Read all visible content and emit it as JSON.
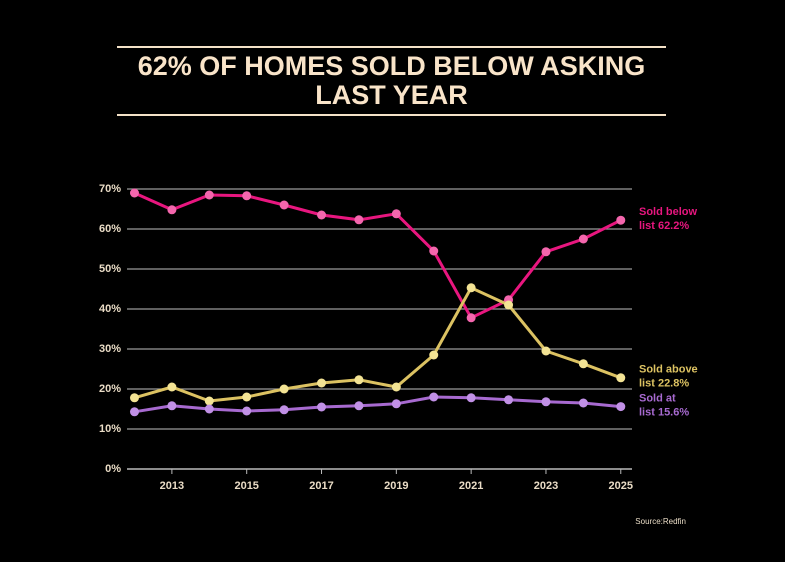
{
  "chart_data": {
    "type": "line",
    "title": "62% OF HOMES SOLD BELOW ASKING LAST YEAR",
    "source": "Source:Redfin",
    "x": [
      2012,
      2013,
      2014,
      2015,
      2016,
      2017,
      2018,
      2019,
      2020,
      2021,
      2022,
      2023,
      2024,
      2025
    ],
    "xlim": [
      2011.8,
      2025.3
    ],
    "xticks": [
      2013,
      2015,
      2017,
      2019,
      2021,
      2023,
      2025
    ],
    "ylim": [
      0,
      70
    ],
    "yticks": [
      {
        "value": 0,
        "label": "0%"
      },
      {
        "value": 10,
        "label": "10%"
      },
      {
        "value": 20,
        "label": "20%"
      },
      {
        "value": 30,
        "label": "30%"
      },
      {
        "value": 40,
        "label": "40%"
      },
      {
        "value": 50,
        "label": "50%"
      },
      {
        "value": 60,
        "label": "60%"
      },
      {
        "value": 70,
        "label": "70%"
      }
    ],
    "grid": true,
    "series": [
      {
        "name": "Sold below",
        "end_label": "list 62.2%",
        "color": "#e8167f",
        "marker_color": "#f466ad",
        "values": [
          69.0,
          64.8,
          68.5,
          68.3,
          66.0,
          63.5,
          62.3,
          63.8,
          54.5,
          37.8,
          42.3,
          54.3,
          57.5,
          62.2
        ]
      },
      {
        "name": "Sold above",
        "end_label": "list 22.8%",
        "color": "#dcc262",
        "marker_color": "#f3e394",
        "values": [
          17.8,
          20.5,
          17.0,
          18.0,
          20.0,
          21.5,
          22.3,
          20.5,
          28.5,
          45.3,
          41.0,
          29.5,
          26.3,
          22.8
        ]
      },
      {
        "name": "Sold at",
        "end_label": "list 15.6%",
        "color": "#a76ad0",
        "marker_color": "#c190e6",
        "values": [
          14.3,
          15.8,
          15.0,
          14.5,
          14.8,
          15.5,
          15.8,
          16.3,
          18.0,
          17.8,
          17.3,
          16.8,
          16.5,
          15.6
        ]
      }
    ]
  }
}
